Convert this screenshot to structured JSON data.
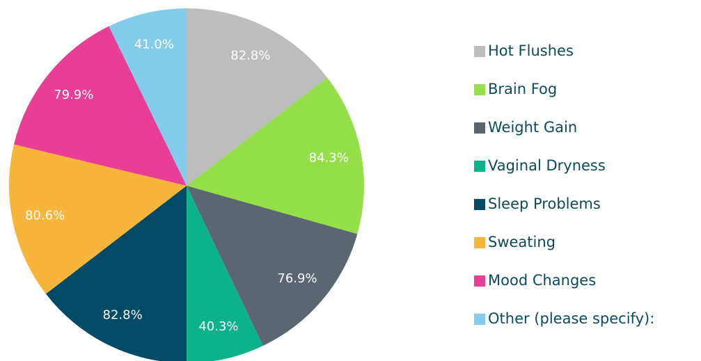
{
  "chart_data": {
    "type": "pie",
    "categories": [
      "Hot Flushes",
      "Brain Fog",
      "Weight Gain",
      "Vaginal Dryness",
      "Sleep Problems",
      "Sweating",
      "Mood Changes",
      "Other (please specify):"
    ],
    "values": [
      82.8,
      84.3,
      76.9,
      40.3,
      82.8,
      80.6,
      79.9,
      41.0
    ],
    "value_labels": [
      "82.8%",
      "84.3%",
      "76.9%",
      "40.3%",
      "82.8%",
      "80.6%",
      "79.9%",
      "41.0%"
    ],
    "colors": [
      "#bdbdbd",
      "#95e04a",
      "#5c6670",
      "#0cb38a",
      "#034a66",
      "#f7b53b",
      "#e83e96",
      "#84ccec"
    ],
    "legend": "right"
  }
}
